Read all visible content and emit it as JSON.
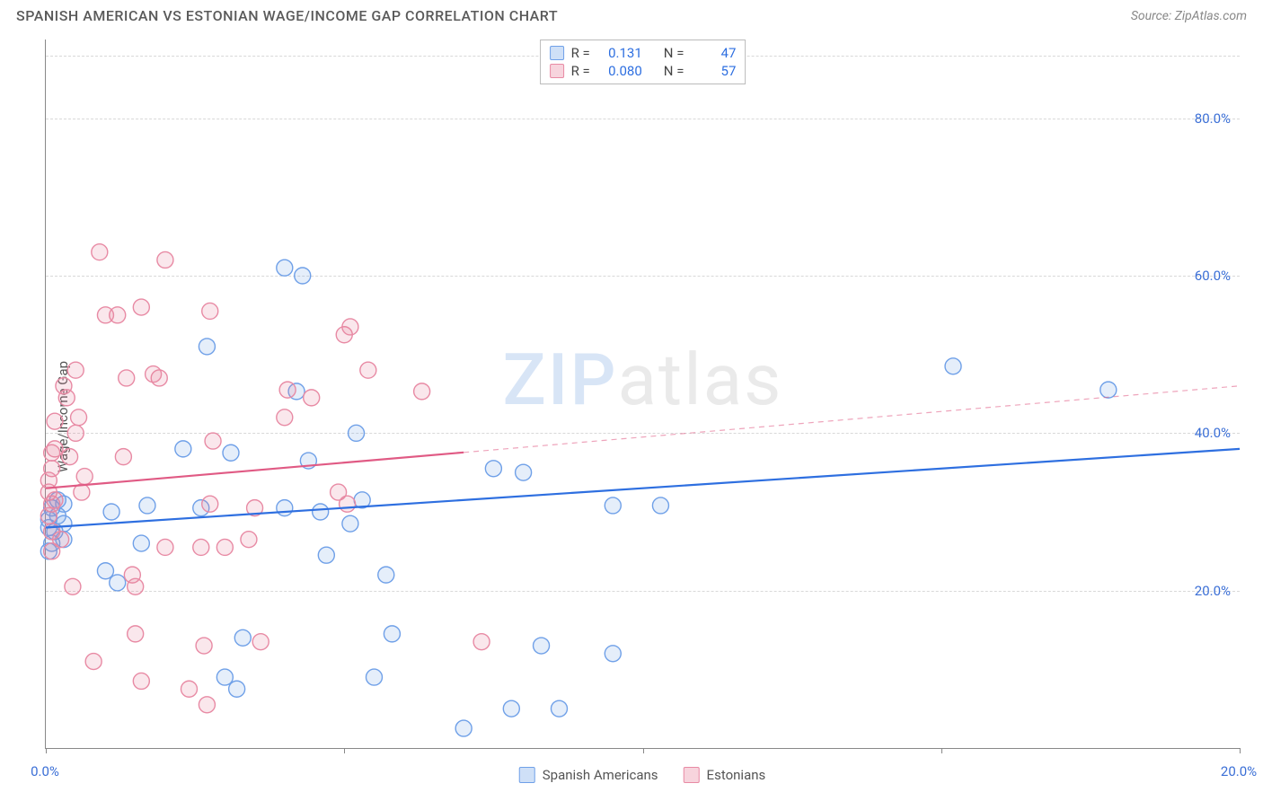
{
  "header": {
    "title": "SPANISH AMERICAN VS ESTONIAN WAGE/INCOME GAP CORRELATION CHART",
    "source": "Source: ZipAtlas.com"
  },
  "chart": {
    "type": "scatter",
    "ylabel": "Wage/Income Gap",
    "watermark": {
      "part1": "ZIP",
      "part2": "atlas"
    },
    "xlim": [
      0,
      20
    ],
    "ylim": [
      0,
      90
    ],
    "xticks": [
      0,
      5,
      10,
      15,
      20
    ],
    "xtick_labels": [
      "0.0%",
      "",
      "",
      "",
      "20.0%"
    ],
    "yticks": [
      20,
      40,
      60,
      80
    ],
    "ytick_labels": [
      "20.0%",
      "40.0%",
      "60.0%",
      "80.0%"
    ],
    "background_color": "#ffffff",
    "grid_color": "#d8d8d8",
    "axis_color": "#888888",
    "tick_label_color": "#3b6fd6",
    "marker_radius": 9,
    "marker_fill_opacity": 0.18,
    "marker_stroke_width": 1.4,
    "stat_box": {
      "rows": [
        {
          "swatch_fill": "#cfe0f7",
          "swatch_stroke": "#6fa0e8",
          "r_label": "R =",
          "r_value": "0.131",
          "n_label": "N =",
          "n_value": "47"
        },
        {
          "swatch_fill": "#f7d4dd",
          "swatch_stroke": "#e88aa4",
          "r_label": "R =",
          "r_value": "0.080",
          "n_label": "N =",
          "n_value": "57"
        }
      ]
    },
    "legend_bottom": [
      {
        "label": "Spanish Americans",
        "swatch_fill": "#cfe0f7",
        "swatch_stroke": "#6fa0e8"
      },
      {
        "label": "Estonians",
        "swatch_fill": "#f7d4dd",
        "swatch_stroke": "#e88aa4"
      }
    ],
    "series": [
      {
        "name": "Spanish Americans",
        "color": "#2e6fe0",
        "fill": "rgba(110,160,230,0.18)",
        "stroke": "#6fa0e8",
        "trend": {
          "x1": 0,
          "y1": 28,
          "x2": 20,
          "y2": 38,
          "extrapolate_from_x": null,
          "width": 2.2
        },
        "points": [
          [
            0.05,
            28
          ],
          [
            0.1,
            30.5
          ],
          [
            0.1,
            26
          ],
          [
            0.05,
            25
          ],
          [
            0.15,
            27.5
          ],
          [
            0.2,
            29.5
          ],
          [
            0.2,
            31.5
          ],
          [
            4.3,
            60
          ],
          [
            4.0,
            61
          ],
          [
            2.7,
            51
          ],
          [
            2.3,
            38
          ],
          [
            2.6,
            30.5
          ],
          [
            1.7,
            30.8
          ],
          [
            1.6,
            26
          ],
          [
            1.2,
            21
          ],
          [
            3.2,
            7.5
          ],
          [
            3.3,
            14
          ],
          [
            4.2,
            45.3
          ],
          [
            5.2,
            40
          ],
          [
            4.0,
            30.5
          ],
          [
            3.1,
            37.5
          ],
          [
            5.3,
            31.5
          ],
          [
            5.1,
            28.5
          ],
          [
            4.7,
            24.5
          ],
          [
            5.7,
            22
          ],
          [
            5.8,
            14.5
          ],
          [
            5.5,
            9
          ],
          [
            7.5,
            35.5
          ],
          [
            7.0,
            2.5
          ],
          [
            7.8,
            5
          ],
          [
            8.0,
            35
          ],
          [
            9.5,
            30.8
          ],
          [
            9.5,
            12
          ],
          [
            10.3,
            30.8
          ],
          [
            8.6,
            5
          ],
          [
            8.3,
            13
          ],
          [
            15.2,
            48.5
          ],
          [
            17.8,
            45.5
          ],
          [
            0.3,
            31
          ],
          [
            0.3,
            28.5
          ],
          [
            0.05,
            29
          ],
          [
            0.3,
            26.5
          ],
          [
            1.0,
            22.5
          ],
          [
            1.1,
            30
          ],
          [
            4.4,
            36.5
          ],
          [
            4.6,
            30
          ],
          [
            3.0,
            9
          ]
        ]
      },
      {
        "name": "Estonians",
        "color": "#e05a84",
        "fill": "rgba(230,120,150,0.18)",
        "stroke": "#e88aa4",
        "trend": {
          "x1": 0,
          "y1": 33,
          "x2": 20,
          "y2": 46,
          "extrapolate_from_x": 7,
          "width": 2.2
        },
        "points": [
          [
            0.9,
            63
          ],
          [
            2.0,
            62
          ],
          [
            0.55,
            42
          ],
          [
            0.5,
            40
          ],
          [
            0.5,
            48
          ],
          [
            0.3,
            46
          ],
          [
            0.35,
            44.5
          ],
          [
            0.15,
            41.5
          ],
          [
            0.15,
            38
          ],
          [
            0.1,
            37.5
          ],
          [
            0.1,
            35.5
          ],
          [
            0.05,
            34
          ],
          [
            0.05,
            32.5
          ],
          [
            0.1,
            31
          ],
          [
            0.15,
            31.5
          ],
          [
            0.05,
            29.5
          ],
          [
            0.1,
            27.5
          ],
          [
            0.25,
            26.5
          ],
          [
            0.1,
            25
          ],
          [
            0.4,
            37
          ],
          [
            0.6,
            32.5
          ],
          [
            0.65,
            34.5
          ],
          [
            0.8,
            11
          ],
          [
            0.45,
            20.5
          ],
          [
            1.2,
            55
          ],
          [
            1.6,
            56
          ],
          [
            1.9,
            47
          ],
          [
            1.8,
            47.5
          ],
          [
            2.75,
            55.5
          ],
          [
            2.8,
            39
          ],
          [
            2.75,
            31
          ],
          [
            2.6,
            25.5
          ],
          [
            2.0,
            25.5
          ],
          [
            3.0,
            25.5
          ],
          [
            1.3,
            37
          ],
          [
            1.45,
            22
          ],
          [
            1.5,
            20.5
          ],
          [
            1.5,
            14.5
          ],
          [
            1.6,
            8.5
          ],
          [
            2.65,
            13
          ],
          [
            2.7,
            5.5
          ],
          [
            3.4,
            26.5
          ],
          [
            3.5,
            30.5
          ],
          [
            3.6,
            13.5
          ],
          [
            4.0,
            42
          ],
          [
            4.05,
            45.5
          ],
          [
            5.0,
            52.5
          ],
          [
            5.1,
            53.5
          ],
          [
            4.9,
            32.5
          ],
          [
            5.05,
            31
          ],
          [
            4.45,
            44.5
          ],
          [
            5.4,
            48
          ],
          [
            6.3,
            45.3
          ],
          [
            7.3,
            13.5
          ],
          [
            2.4,
            7.5
          ],
          [
            1.0,
            55
          ],
          [
            1.35,
            47
          ]
        ]
      }
    ]
  }
}
